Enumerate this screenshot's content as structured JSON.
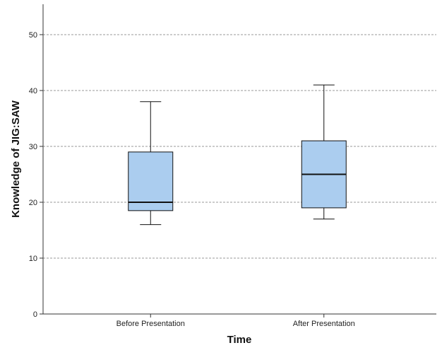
{
  "chart_data": {
    "type": "boxplot",
    "xlabel": "Time",
    "ylabel": "Knowledge of JIG:SAW",
    "ylim": [
      0,
      55
    ],
    "yticks": [
      0,
      10,
      20,
      30,
      40,
      50
    ],
    "grid": "horizontal dashed",
    "box_color": "#abcdef",
    "categories": [
      "Before Presentation",
      "After Presentation"
    ],
    "boxes": [
      {
        "category": "Before Presentation",
        "min": 16,
        "q1": 18.5,
        "median": 20,
        "q3": 29,
        "max": 38
      },
      {
        "category": "After Presentation",
        "min": 17,
        "q1": 19,
        "median": 25,
        "q3": 31,
        "max": 41
      }
    ]
  }
}
